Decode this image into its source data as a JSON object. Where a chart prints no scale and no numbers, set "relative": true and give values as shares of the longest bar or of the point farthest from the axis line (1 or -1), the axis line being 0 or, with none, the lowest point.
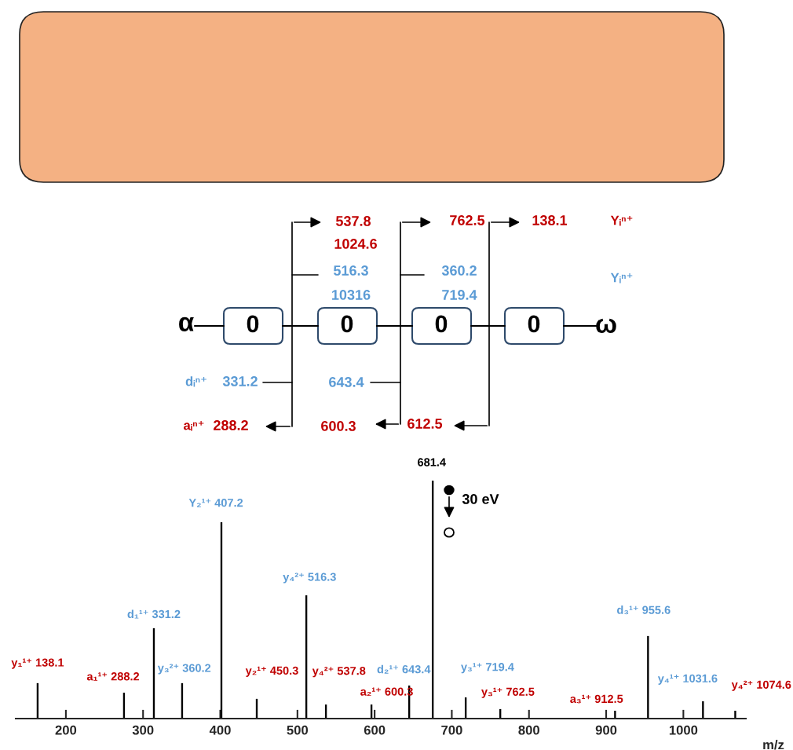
{
  "chart_data": {
    "type": "bar",
    "relative": true,
    "xlabel": "m/z",
    "xlim": [
      135,
      1081
    ],
    "xticks": [
      200,
      300,
      400,
      500,
      600,
      700,
      800,
      900,
      1000
    ],
    "grid": false,
    "x": [
      163.4,
      275.3,
      314,
      350.6,
      401.5,
      447.3,
      511.5,
      536.9,
      595.9,
      644.8,
      675.3,
      718,
      762.8,
      911.5,
      954.2,
      1025.4,
      1067.2
    ],
    "values": [
      0.149,
      0.109,
      0.38,
      0.149,
      0.825,
      0.083,
      0.518,
      0.059,
      0.059,
      0.139,
      1.0,
      0.089,
      0.04,
      0.033,
      0.347,
      0.073,
      0.033
    ],
    "color": "#000000",
    "annotations": [
      {
        "text": "y₁¹⁺ 138.1",
        "x": 163.4,
        "y": 0.149
      },
      {
        "text": "a₁¹⁺ 288.2",
        "x": 275.3,
        "y": 0.109
      },
      {
        "text": "d₁¹⁺ 331.2",
        "x": 314,
        "y": 0.38
      },
      {
        "text": "y₃²⁺ 360.2",
        "x": 350.6,
        "y": 0.149
      },
      {
        "text": "Y₂¹⁺ 407.2",
        "x": 401.5,
        "y": 0.825
      },
      {
        "text": "y₂¹⁺ 450.3",
        "x": 447.3,
        "y": 0.083
      },
      {
        "text": "y₄²⁺ 516.3",
        "x": 511.5,
        "y": 0.518
      },
      {
        "text": "y₄²⁺ 537.8",
        "x": 536.9,
        "y": 0.059
      },
      {
        "text": "a₂¹⁺ 600.3",
        "x": 595.9,
        "y": 0.059
      },
      {
        "text": "d₂¹⁺ 643.4",
        "x": 644.8,
        "y": 0.139
      },
      {
        "text": "681.4",
        "x": 675.3,
        "y": 1.0
      },
      {
        "text": "y₃¹⁺ 719.4",
        "x": 718,
        "y": 0.089
      },
      {
        "text": "y₃¹⁺ 762.5",
        "x": 762.8,
        "y": 0.04
      },
      {
        "text": "a₃¹⁺ 912.5",
        "x": 911.5,
        "y": 0.033
      },
      {
        "text": "d₃¹⁺ 955.6",
        "x": 954.2,
        "y": 0.347
      },
      {
        "text": "y₄¹⁺ 1031.6",
        "x": 1025.4,
        "y": 0.073
      },
      {
        "text": "y₄²⁺ 1074.6",
        "x": 1067.2,
        "y": 0.033
      },
      "537.8",
      "1024.6",
      "516.3",
      "10316",
      "762.5",
      "360.2",
      "719.4",
      "138.1",
      "Yᵢⁿ⁺",
      "Yᵢⁿ⁺",
      "α",
      "ω",
      "0",
      "0",
      "0",
      "0",
      "dᵢⁿ⁺",
      "331.2",
      "643.4",
      "aᵢⁿ⁺",
      "288.2",
      "600.3",
      "612.5",
      "30 eV"
    ]
  }
}
